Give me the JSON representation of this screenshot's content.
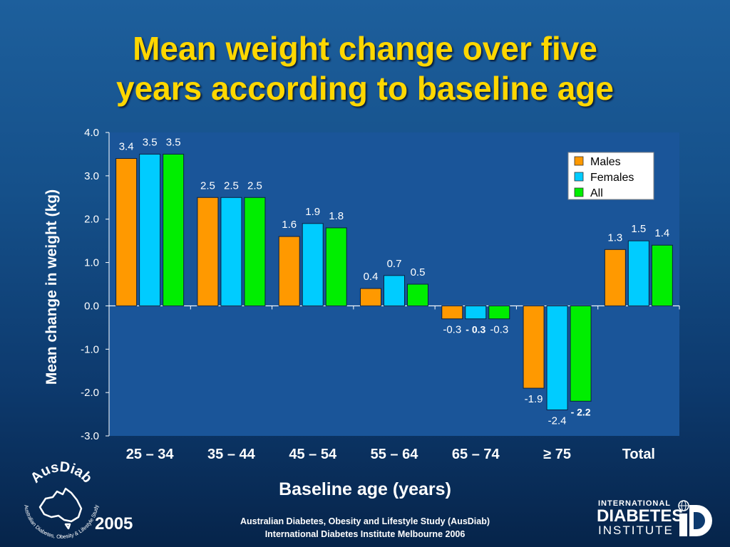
{
  "title_line1": "Mean weight change over five",
  "title_line2": "years according to baseline age",
  "chart_data": {
    "type": "bar",
    "categories": [
      "25 – 34",
      "35 – 44",
      "45 – 54",
      "55 – 64",
      "65 – 74",
      "≥ 75",
      "Total"
    ],
    "series": [
      {
        "name": "Males",
        "color": "#ff9900",
        "values": [
          3.4,
          2.5,
          1.6,
          0.4,
          -0.3,
          -1.9,
          1.3
        ],
        "labels": [
          "3.4",
          "2.5",
          "1.6",
          "0.4",
          "-0.3",
          "-1.9",
          "1.3"
        ]
      },
      {
        "name": "Females",
        "color": "#00ccff",
        "values": [
          3.5,
          2.5,
          1.9,
          0.7,
          -0.3,
          -2.4,
          1.5
        ],
        "labels": [
          "3.5",
          "2.5",
          "1.9",
          "0.7",
          "- 0.3",
          "-2.4",
          "1.5"
        ]
      },
      {
        "name": "All",
        "color": "#00ee00",
        "values": [
          3.5,
          2.5,
          1.8,
          0.5,
          -0.3,
          -2.2,
          1.4
        ],
        "labels": [
          "3.5",
          "2.5",
          "1.8",
          "0.5",
          "-0.3",
          "- 2.2",
          "1.4"
        ]
      }
    ],
    "xlabel": "Baseline age (years)",
    "ylabel": "Mean change in weight (kg)",
    "ylim": [
      -3.0,
      4.0
    ],
    "yticks": [
      "4.0",
      "3.0",
      "2.0",
      "1.0",
      "0.0",
      "-1.0",
      "-2.0",
      "-3.0"
    ],
    "legend_position": "top-right",
    "plot_background": "#1a5599"
  },
  "footer_line1": "Australian Diabetes, Obesity and Lifestyle Study (AusDiab)",
  "footer_line2": "International Diabetes Institute Melbourne 2006",
  "year": "2005",
  "logo_left_name": "AusDiab",
  "logo_left_subtitle": "Australian Diabetes, Obesity & Lifestyle Study",
  "logo_right_line1": "INTERNATIONAL",
  "logo_right_line2": "DIABETES",
  "logo_right_line3": "INSTITUTE"
}
